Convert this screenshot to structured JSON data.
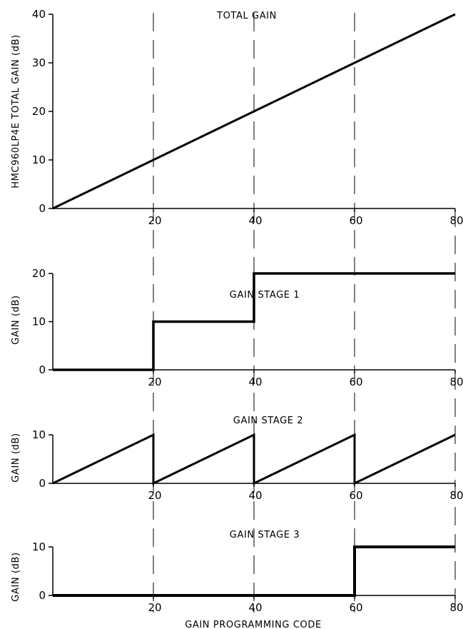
{
  "chart_data": [
    {
      "type": "line",
      "title": "TOTAL GAIN",
      "ylabel": "HMC960LP4E TOTAL GAIN (dB)",
      "xlabel": "",
      "xlim": [
        0,
        80
      ],
      "ylim": [
        0,
        40
      ],
      "xticks": [
        20,
        40,
        60,
        80
      ],
      "yticks": [
        0,
        10,
        20,
        30,
        40
      ],
      "grid": "vertical-dashed",
      "series": [
        {
          "x": [
            0,
            80
          ],
          "y": [
            0,
            40
          ]
        }
      ]
    },
    {
      "type": "line",
      "title": "GAIN STAGE 1",
      "ylabel": "GAIN (dB)",
      "xlabel": "",
      "xlim": [
        0,
        80
      ],
      "ylim": [
        0,
        20
      ],
      "xticks": [
        20,
        40,
        60,
        80
      ],
      "yticks": [
        0,
        10,
        20
      ],
      "grid": "vertical-dashed",
      "series": [
        {
          "x": [
            0,
            20,
            20,
            40,
            40,
            80
          ],
          "y": [
            0,
            0,
            10,
            10,
            20,
            20
          ]
        }
      ]
    },
    {
      "type": "line",
      "title": "GAIN STAGE 2",
      "ylabel": "GAIN (dB)",
      "xlabel": "",
      "xlim": [
        0,
        80
      ],
      "ylim": [
        0,
        10
      ],
      "xticks": [
        20,
        40,
        60,
        80
      ],
      "yticks": [
        0,
        10
      ],
      "grid": "vertical-dashed",
      "series": [
        {
          "x": [
            0,
            20,
            20,
            40,
            40,
            60,
            60,
            80
          ],
          "y": [
            0,
            10,
            0,
            10,
            0,
            10,
            0,
            10
          ]
        }
      ]
    },
    {
      "type": "line",
      "title": "GAIN STAGE 3",
      "ylabel": "GAIN (dB)",
      "xlabel": "GAIN PROGRAMMING CODE",
      "xlim": [
        0,
        80
      ],
      "ylim": [
        0,
        10
      ],
      "xticks": [
        20,
        40,
        60,
        80
      ],
      "yticks": [
        0,
        10
      ],
      "grid": "vertical-dashed",
      "series": [
        {
          "x": [
            0,
            60,
            60,
            80
          ],
          "y": [
            0,
            0,
            10,
            10
          ]
        }
      ]
    }
  ]
}
